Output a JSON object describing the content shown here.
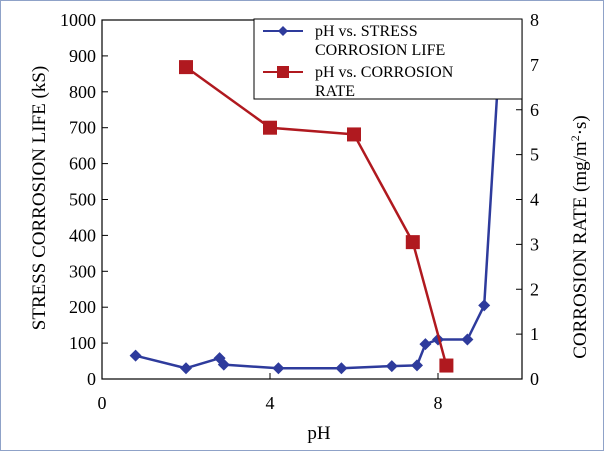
{
  "chart_data": {
    "type": "line",
    "xlabel": "pH",
    "xlim": [
      0,
      10
    ],
    "xticks": [
      "0",
      "4",
      "8"
    ],
    "ylabel_left": "STRESS CORROSION LIFE (kS)",
    "ylim_left": [
      0,
      1000
    ],
    "yticks_left": [
      "0",
      "100",
      "200",
      "300",
      "400",
      "500",
      "600",
      "700",
      "800",
      "900",
      "1000"
    ],
    "ylabel_right": "CORROSION RATE (mg/m²·s)",
    "ylabel_right_parts": [
      "CORROSION RATE (mg/m",
      "2",
      "·s)"
    ],
    "ylim_right": [
      0,
      8
    ],
    "yticks_right": [
      "0",
      "1",
      "2",
      "3",
      "4",
      "5",
      "6",
      "7",
      "8"
    ],
    "grid": false,
    "legend_position": "top-right",
    "series": [
      {
        "name": "pH vs. STRESS CORROSION LIFE",
        "legend_lines": [
          "pH vs. STRESS",
          "CORROSION LIFE"
        ],
        "axis": "left",
        "color": "#2e3b9c",
        "marker": "diamond",
        "x": [
          0.8,
          2.0,
          2.8,
          2.9,
          4.2,
          5.7,
          6.9,
          7.5,
          7.7,
          8.0,
          8.7,
          9.1,
          9.5
        ],
        "y": [
          65,
          30,
          58,
          40,
          30,
          30,
          36,
          38,
          97,
          110,
          110,
          205,
          970
        ]
      },
      {
        "name": "pH vs. CORROSION RATE",
        "legend_lines": [
          "pH vs. CORROSION",
          "RATE"
        ],
        "axis": "right",
        "color": "#b0191f",
        "marker": "square",
        "x": [
          2.0,
          4.0,
          6.0,
          7.4,
          8.2
        ],
        "y": [
          6.95,
          5.6,
          5.45,
          3.05,
          0.3
        ]
      }
    ]
  }
}
